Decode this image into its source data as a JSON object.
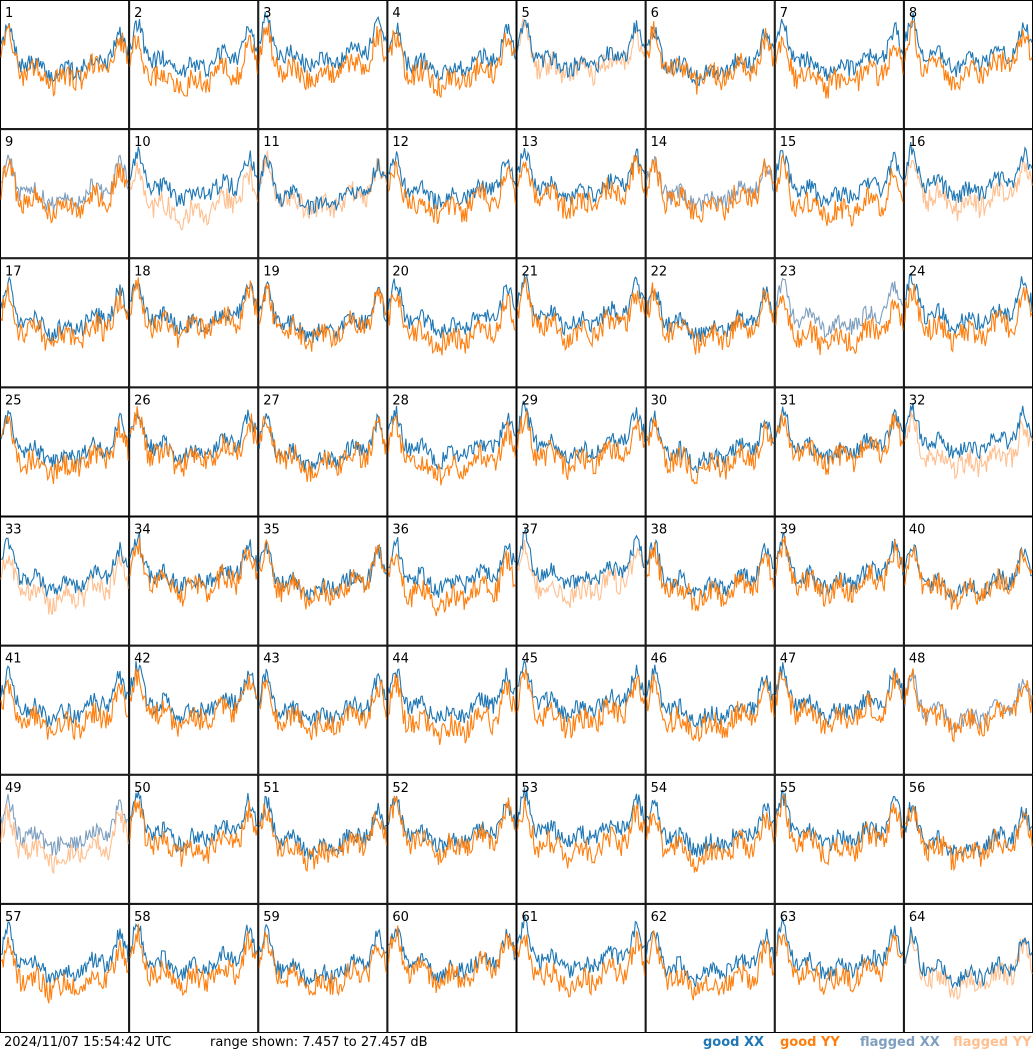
{
  "chart_data": {
    "type": "line",
    "title": "",
    "xlabel": "",
    "ylabel": "",
    "ylim": [
      7.457,
      27.457
    ],
    "panels": [
      {
        "id": "1",
        "xx": "good",
        "yy": "good"
      },
      {
        "id": "2",
        "xx": "good",
        "yy": "good"
      },
      {
        "id": "3",
        "xx": "good",
        "yy": "good"
      },
      {
        "id": "4",
        "xx": "good",
        "yy": "good"
      },
      {
        "id": "5",
        "xx": "good",
        "yy": "flagged"
      },
      {
        "id": "6",
        "xx": "good",
        "yy": "good"
      },
      {
        "id": "7",
        "xx": "good",
        "yy": "good"
      },
      {
        "id": "8",
        "xx": "good",
        "yy": "good"
      },
      {
        "id": "9",
        "xx": "flagged",
        "yy": "good"
      },
      {
        "id": "10",
        "xx": "good",
        "yy": "flagged"
      },
      {
        "id": "11",
        "xx": "good",
        "yy": "flagged"
      },
      {
        "id": "12",
        "xx": "good",
        "yy": "good"
      },
      {
        "id": "13",
        "xx": "good",
        "yy": "good"
      },
      {
        "id": "14",
        "xx": "flagged",
        "yy": "good"
      },
      {
        "id": "15",
        "xx": "good",
        "yy": "good"
      },
      {
        "id": "16",
        "xx": "good",
        "yy": "flagged"
      },
      {
        "id": "17",
        "xx": "good",
        "yy": "good"
      },
      {
        "id": "18",
        "xx": "good",
        "yy": "good"
      },
      {
        "id": "19",
        "xx": "good",
        "yy": "good"
      },
      {
        "id": "20",
        "xx": "good",
        "yy": "good"
      },
      {
        "id": "21",
        "xx": "good",
        "yy": "good"
      },
      {
        "id": "22",
        "xx": "good",
        "yy": "good"
      },
      {
        "id": "23",
        "xx": "flagged",
        "yy": "good"
      },
      {
        "id": "24",
        "xx": "good",
        "yy": "good"
      },
      {
        "id": "25",
        "xx": "good",
        "yy": "good"
      },
      {
        "id": "26",
        "xx": "good",
        "yy": "good"
      },
      {
        "id": "27",
        "xx": "good",
        "yy": "good"
      },
      {
        "id": "28",
        "xx": "good",
        "yy": "good"
      },
      {
        "id": "29",
        "xx": "good",
        "yy": "good"
      },
      {
        "id": "30",
        "xx": "good",
        "yy": "good"
      },
      {
        "id": "31",
        "xx": "good",
        "yy": "good"
      },
      {
        "id": "32",
        "xx": "good",
        "yy": "flagged"
      },
      {
        "id": "33",
        "xx": "good",
        "yy": "flagged"
      },
      {
        "id": "34",
        "xx": "good",
        "yy": "good"
      },
      {
        "id": "35",
        "xx": "good",
        "yy": "good"
      },
      {
        "id": "36",
        "xx": "good",
        "yy": "good"
      },
      {
        "id": "37",
        "xx": "good",
        "yy": "flagged"
      },
      {
        "id": "38",
        "xx": "good",
        "yy": "good"
      },
      {
        "id": "39",
        "xx": "good",
        "yy": "good"
      },
      {
        "id": "40",
        "xx": "good",
        "yy": "good"
      },
      {
        "id": "41",
        "xx": "good",
        "yy": "good"
      },
      {
        "id": "42",
        "xx": "good",
        "yy": "good"
      },
      {
        "id": "43",
        "xx": "good",
        "yy": "good"
      },
      {
        "id": "44",
        "xx": "good",
        "yy": "good"
      },
      {
        "id": "45",
        "xx": "good",
        "yy": "good"
      },
      {
        "id": "46",
        "xx": "good",
        "yy": "good"
      },
      {
        "id": "47",
        "xx": "good",
        "yy": "good"
      },
      {
        "id": "48",
        "xx": "flagged",
        "yy": "good"
      },
      {
        "id": "49",
        "xx": "flagged",
        "yy": "flagged"
      },
      {
        "id": "50",
        "xx": "good",
        "yy": "good"
      },
      {
        "id": "51",
        "xx": "good",
        "yy": "good"
      },
      {
        "id": "52",
        "xx": "good",
        "yy": "good"
      },
      {
        "id": "53",
        "xx": "good",
        "yy": "good"
      },
      {
        "id": "54",
        "xx": "good",
        "yy": "good"
      },
      {
        "id": "55",
        "xx": "good",
        "yy": "good"
      },
      {
        "id": "56",
        "xx": "good",
        "yy": "good"
      },
      {
        "id": "57",
        "xx": "good",
        "yy": "good"
      },
      {
        "id": "58",
        "xx": "good",
        "yy": "good"
      },
      {
        "id": "59",
        "xx": "good",
        "yy": "good"
      },
      {
        "id": "60",
        "xx": "good",
        "yy": "good"
      },
      {
        "id": "61",
        "xx": "good",
        "yy": "good"
      },
      {
        "id": "62",
        "xx": "good",
        "yy": "good"
      },
      {
        "id": "63",
        "xx": "good",
        "yy": "good"
      },
      {
        "id": "64",
        "xx": "good",
        "yy": "flagged"
      }
    ],
    "legend": [
      "good XX",
      "good YY",
      "flagged XX",
      "flagged YY"
    ]
  },
  "footer": {
    "timestamp": "2024/11/07 15:54:42 UTC",
    "range_text": "range shown: 7.457 to 27.457 dB"
  },
  "legend": {
    "good_xx": {
      "word": "good",
      "pol": "XX",
      "color": "#1f77b4"
    },
    "good_yy": {
      "word": "good",
      "pol": "YY",
      "color": "#ff7f0e"
    },
    "flagged_xx": {
      "word": "flagged",
      "pol": "XX",
      "color": "#7f9fbf"
    },
    "flagged_yy": {
      "word": "flagged",
      "pol": "YY",
      "color": "#ffbf8f"
    }
  },
  "colors": {
    "good_xx": "#1f77b4",
    "good_yy": "#ff7f0e",
    "flagged_xx": "#7f9fbf",
    "flagged_yy": "#ffbf8f"
  }
}
